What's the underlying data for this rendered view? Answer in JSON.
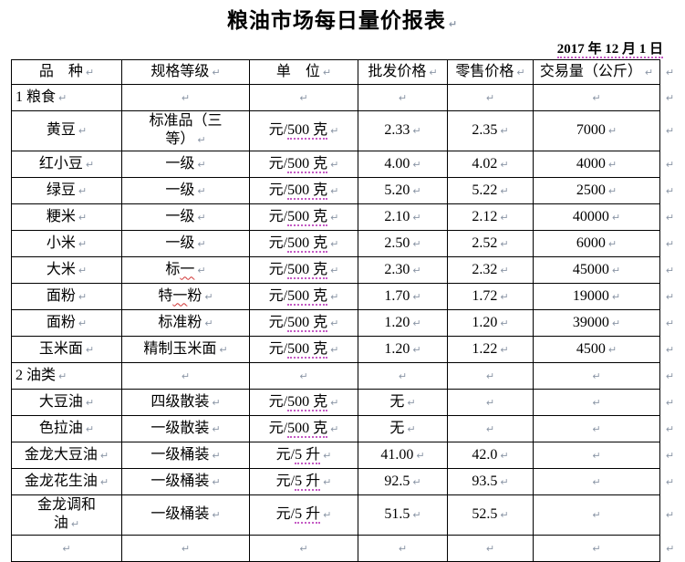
{
  "page": {
    "title": "粮油市场每日量价报表",
    "date": "2017 年 12 月 1 日"
  },
  "marks": {
    "end_of_cell": "↵"
  },
  "table": {
    "headers": [
      "品　种",
      "规格等级",
      "单　位",
      "批发价格",
      "零售价格",
      "交易量（公斤）"
    ],
    "rows": [
      {
        "kind": "section",
        "cells": [
          [
            "1 粮食"
          ],
          [],
          [],
          [],
          [],
          []
        ]
      },
      {
        "kind": "data",
        "cells": [
          [
            "黄豆"
          ],
          [
            "标准品（三\n等）"
          ],
          [
            "元/",
            {
              "t": "500 克",
              "style": "dotted"
            }
          ],
          [
            "2.33"
          ],
          [
            "2.35"
          ],
          [
            "7000"
          ]
        ]
      },
      {
        "kind": "data",
        "cells": [
          [
            "红小豆"
          ],
          [
            "一级"
          ],
          [
            "元/",
            {
              "t": "500 克",
              "style": "dotted"
            }
          ],
          [
            "4.00"
          ],
          [
            "4.02"
          ],
          [
            "4000"
          ]
        ]
      },
      {
        "kind": "data",
        "cells": [
          [
            "绿豆"
          ],
          [
            "一级"
          ],
          [
            "元/",
            {
              "t": "500 克",
              "style": "dotted"
            }
          ],
          [
            "5.20"
          ],
          [
            "5.22"
          ],
          [
            "2500"
          ]
        ]
      },
      {
        "kind": "data",
        "cells": [
          [
            "粳米"
          ],
          [
            "一级"
          ],
          [
            "元/",
            {
              "t": "500 克",
              "style": "dotted"
            }
          ],
          [
            "2.10"
          ],
          [
            "2.12"
          ],
          [
            "40000"
          ]
        ]
      },
      {
        "kind": "data",
        "cells": [
          [
            "小米"
          ],
          [
            "一级"
          ],
          [
            "元/",
            {
              "t": "500 克",
              "style": "dotted"
            }
          ],
          [
            "2.50"
          ],
          [
            "2.52"
          ],
          [
            "6000"
          ]
        ]
      },
      {
        "kind": "data",
        "cells": [
          [
            "大米"
          ],
          [
            "标",
            {
              "t": "一",
              "style": "wavy"
            }
          ],
          [
            "元/",
            {
              "t": "500 克",
              "style": "dotted"
            }
          ],
          [
            "2.30"
          ],
          [
            "2.32"
          ],
          [
            "45000"
          ]
        ]
      },
      {
        "kind": "data",
        "cells": [
          [
            "面粉"
          ],
          [
            "特",
            {
              "t": "一",
              "style": "wavy"
            },
            "粉"
          ],
          [
            "元/",
            {
              "t": "500 克",
              "style": "dotted"
            }
          ],
          [
            "1.70"
          ],
          [
            "1.72"
          ],
          [
            "19000"
          ]
        ]
      },
      {
        "kind": "data",
        "cells": [
          [
            "面粉"
          ],
          [
            "标准粉"
          ],
          [
            "元/",
            {
              "t": "500 克",
              "style": "dotted"
            }
          ],
          [
            "1.20"
          ],
          [
            "1.20"
          ],
          [
            "39000"
          ]
        ]
      },
      {
        "kind": "data",
        "cells": [
          [
            "玉米面"
          ],
          [
            "精制玉米面"
          ],
          [
            "元/",
            {
              "t": "500 克",
              "style": "dotted"
            }
          ],
          [
            "1.20"
          ],
          [
            "1.22"
          ],
          [
            "4500"
          ]
        ]
      },
      {
        "kind": "section",
        "cells": [
          [
            "2 油类"
          ],
          [],
          [],
          [],
          [],
          []
        ]
      },
      {
        "kind": "data",
        "cells": [
          [
            "大豆油"
          ],
          [
            "四级散装"
          ],
          [
            "元/",
            {
              "t": "500 克",
              "style": "dotted"
            }
          ],
          [
            "无"
          ],
          [],
          []
        ]
      },
      {
        "kind": "data",
        "cells": [
          [
            "色拉油"
          ],
          [
            "一级散装"
          ],
          [
            "元/",
            {
              "t": "500 克",
              "style": "dotted"
            }
          ],
          [
            "无"
          ],
          [],
          []
        ]
      },
      {
        "kind": "data",
        "cells": [
          [
            "金龙大豆油"
          ],
          [
            "一级桶装"
          ],
          [
            "元/",
            {
              "t": "5 升",
              "style": "dotted"
            }
          ],
          [
            "41.00"
          ],
          [
            "42.0"
          ],
          []
        ]
      },
      {
        "kind": "data",
        "cells": [
          [
            "金龙花生油"
          ],
          [
            "一级桶装"
          ],
          [
            "元/",
            {
              "t": "5 升",
              "style": "dotted"
            }
          ],
          [
            "92.5"
          ],
          [
            "93.5"
          ],
          []
        ]
      },
      {
        "kind": "data",
        "cells": [
          [
            "金龙调和\n油"
          ],
          [
            "一级桶装"
          ],
          [
            "元/",
            {
              "t": "5 升",
              "style": "dotted"
            }
          ],
          [
            "51.5"
          ],
          [
            "52.5"
          ],
          []
        ]
      },
      {
        "kind": "empty",
        "cells": [
          [],
          [],
          [],
          [],
          [],
          []
        ]
      }
    ]
  }
}
